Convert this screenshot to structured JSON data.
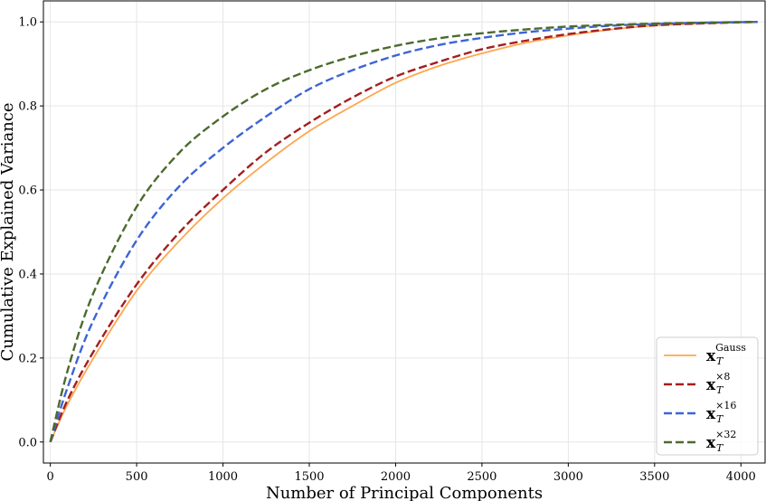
{
  "chart_data": {
    "type": "line",
    "title": "",
    "xlabel": "Number of Principal Components",
    "ylabel": "Cumulative Explained Variance",
    "xlim": [
      -40,
      4140
    ],
    "ylim": [
      -0.05,
      1.05
    ],
    "xticks": [
      0,
      500,
      1000,
      1500,
      2000,
      2500,
      3000,
      3500,
      4000
    ],
    "yticks": [
      0.0,
      0.2,
      0.4,
      0.6,
      0.8,
      1.0
    ],
    "xtick_labels": [
      "0",
      "500",
      "1000",
      "1500",
      "2000",
      "2500",
      "3000",
      "3500",
      "4000"
    ],
    "ytick_labels": [
      "0.0",
      "0.2",
      "0.4",
      "0.6",
      "0.8",
      "1.0"
    ],
    "grid": true,
    "legend_position": "bottom-right",
    "x": [
      0,
      100,
      250,
      500,
      750,
      1000,
      1250,
      1500,
      1750,
      2000,
      2250,
      2500,
      2750,
      3000,
      3250,
      3500,
      3750,
      4000,
      4096
    ],
    "series": [
      {
        "name": "x",
        "name_sup": "Gauss",
        "name_sub": "T",
        "color": "#ffa64d",
        "dash": "solid",
        "values": [
          0.0,
          0.09,
          0.2,
          0.36,
          0.48,
          0.58,
          0.665,
          0.74,
          0.8,
          0.855,
          0.895,
          0.925,
          0.95,
          0.968,
          0.982,
          0.991,
          0.996,
          0.999,
          1.0
        ]
      },
      {
        "name": "x",
        "name_sup": "×8",
        "name_sub": "T",
        "color": "#a31f1f",
        "dash": "dashed",
        "values": [
          0.0,
          0.1,
          0.215,
          0.375,
          0.5,
          0.6,
          0.69,
          0.76,
          0.82,
          0.87,
          0.905,
          0.935,
          0.955,
          0.971,
          0.983,
          0.992,
          0.996,
          0.999,
          1.0
        ]
      },
      {
        "name": "x",
        "name_sup": "×16",
        "name_sub": "T",
        "color": "#3d64d6",
        "dash": "dashed",
        "values": [
          0.0,
          0.13,
          0.29,
          0.48,
          0.61,
          0.7,
          0.775,
          0.84,
          0.885,
          0.92,
          0.945,
          0.962,
          0.975,
          0.984,
          0.991,
          0.995,
          0.998,
          0.9995,
          1.0
        ]
      },
      {
        "name": "x",
        "name_sup": "×32",
        "name_sub": "T",
        "color": "#4b6a2e",
        "dash": "dashed",
        "values": [
          0.0,
          0.17,
          0.355,
          0.56,
          0.69,
          0.775,
          0.84,
          0.885,
          0.918,
          0.943,
          0.961,
          0.973,
          0.982,
          0.989,
          0.993,
          0.996,
          0.998,
          0.9995,
          1.0
        ]
      }
    ]
  }
}
